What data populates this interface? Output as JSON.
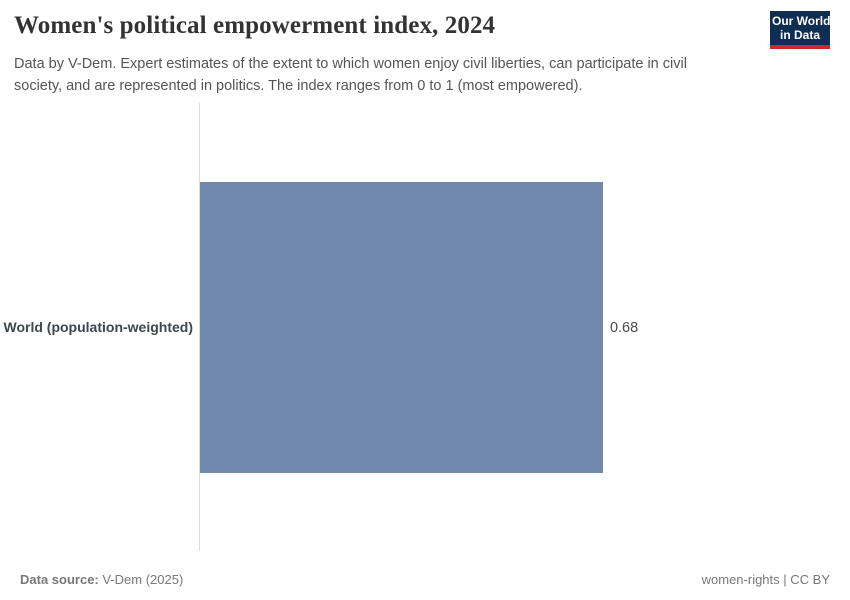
{
  "header": {
    "title": "Women's political empowerment index, 2024",
    "subtitle": "Data by V-Dem. Expert estimates of the extent to which women enjoy civil liberties, can participate in civil society, and are represented in politics. The index ranges from 0 to 1 (most empowered).",
    "logo": {
      "line1": "Our World",
      "line2": "in Data"
    }
  },
  "chart_data": {
    "type": "bar",
    "orientation": "horizontal",
    "title": "Women's political empowerment index, 2024",
    "categories": [
      "World (population-weighted)"
    ],
    "values": [
      0.68
    ],
    "value_labels": [
      "0.68"
    ],
    "xlabel": "",
    "ylabel": "",
    "xlim": [
      0,
      1
    ],
    "grid": false,
    "legend": false,
    "bar_color": "#7289ae",
    "axis_line_color": "#dddddd"
  },
  "footer": {
    "source_label": "Data source:",
    "source_value": " V-Dem (2025)",
    "note_slug": "women-rights",
    "note_separator": " | ",
    "note_license": "CC BY"
  },
  "colors": {
    "bar": "#7289ae",
    "logo_background": "#0f2d50",
    "logo_underline": "#cc2a2a",
    "title_text": "#333333",
    "subtitle_text": "#555555",
    "footer_text": "#787878"
  }
}
